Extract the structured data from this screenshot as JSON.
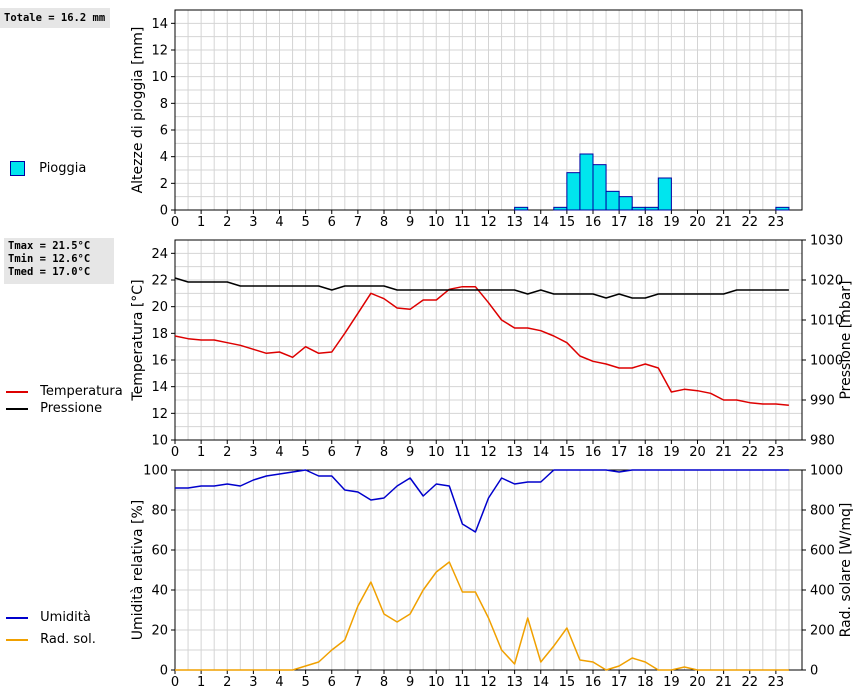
{
  "rain_total": "Totale = 16.2 mm",
  "stats": {
    "tmax": "Tmax = 21.5°C",
    "tmin": "Tmin = 12.6°C",
    "tmed": "Tmed = 17.0°C"
  },
  "legend": {
    "rain": "Pioggia",
    "temperature": "Temperatura",
    "pressure": "Pressione",
    "humidity": "Umidità",
    "radiation": "Rad. sol."
  },
  "colors": {
    "rain_fill": "#00e5ee",
    "rain_edge": "#0000a0",
    "temperature": "#dd0000",
    "pressure": "#000000",
    "humidity": "#0000cc",
    "radiation": "#f0a000",
    "grid": "#d4d4d4"
  },
  "chart_data": [
    {
      "type": "bar",
      "ylabel": "Altezze di pioggia [mm]",
      "xlim": [
        0,
        24
      ],
      "ylim": [
        0,
        15
      ],
      "yticks": [
        0,
        2,
        4,
        6,
        8,
        10,
        12,
        14
      ],
      "xticks": [
        0,
        1,
        2,
        3,
        4,
        5,
        6,
        7,
        8,
        9,
        10,
        11,
        12,
        13,
        14,
        15,
        16,
        17,
        18,
        19,
        20,
        21,
        22,
        23
      ],
      "series": [
        {
          "name": "Pioggia",
          "bin_width": 0.5,
          "x": [
            13.0,
            14.5,
            15.0,
            15.5,
            16.0,
            16.5,
            17.0,
            17.5,
            18.0,
            18.5,
            23.0
          ],
          "values": [
            0.2,
            0.2,
            2.8,
            4.2,
            3.4,
            1.4,
            1.0,
            0.2,
            0.2,
            2.4,
            0.2
          ]
        }
      ]
    },
    {
      "type": "line",
      "ylabel": "Temperatura [°C]",
      "y2label": "Pressione [mbar]",
      "xlim": [
        0,
        24
      ],
      "ylim": [
        10,
        25
      ],
      "yticks": [
        10,
        12,
        14,
        16,
        18,
        20,
        22,
        24
      ],
      "y2lim": [
        980,
        1030
      ],
      "y2ticks": [
        980,
        990,
        1000,
        1010,
        1020,
        1030
      ],
      "xticks": [
        0,
        1,
        2,
        3,
        4,
        5,
        6,
        7,
        8,
        9,
        10,
        11,
        12,
        13,
        14,
        15,
        16,
        17,
        18,
        19,
        20,
        21,
        22,
        23
      ],
      "series": [
        {
          "name": "Temperatura",
          "axis": "left",
          "x": [
            0,
            0.5,
            1,
            1.5,
            2,
            2.5,
            3,
            3.5,
            4,
            4.5,
            5,
            5.5,
            6,
            6.5,
            7,
            7.5,
            8,
            8.5,
            9,
            9.5,
            10,
            10.5,
            11,
            11.5,
            12,
            12.5,
            13,
            13.5,
            14,
            14.5,
            15,
            15.5,
            16,
            16.5,
            17,
            17.5,
            18,
            18.5,
            19,
            19.5,
            20,
            20.5,
            21,
            21.5,
            22,
            22.5,
            23,
            23.5
          ],
          "values": [
            17.8,
            17.6,
            17.5,
            17.5,
            17.3,
            17.1,
            16.8,
            16.5,
            16.6,
            16.2,
            17.0,
            16.5,
            16.6,
            18.0,
            19.5,
            21.0,
            20.6,
            19.9,
            19.8,
            20.5,
            20.5,
            21.3,
            21.5,
            21.5,
            20.3,
            19.0,
            18.4,
            18.4,
            18.2,
            17.8,
            17.3,
            16.3,
            15.9,
            15.7,
            15.4,
            15.4,
            15.7,
            15.4,
            13.6,
            13.8,
            13.7,
            13.5,
            13.0,
            13.0,
            12.8,
            12.7,
            12.7,
            12.6
          ]
        },
        {
          "name": "Pressione",
          "axis": "right",
          "x": [
            0,
            0.5,
            1,
            1.5,
            2,
            2.5,
            3,
            3.5,
            4,
            4.5,
            5,
            5.5,
            6,
            6.5,
            7,
            7.5,
            8,
            8.5,
            9,
            9.5,
            10,
            10.5,
            11,
            11.5,
            12,
            12.5,
            13,
            13.5,
            14,
            14.5,
            15,
            15.5,
            16,
            16.5,
            17,
            17.5,
            18,
            18.5,
            19,
            19.5,
            20,
            20.5,
            21,
            21.5,
            22,
            22.5,
            23,
            23.5
          ],
          "values": [
            1020.5,
            1019.5,
            1019.5,
            1019.5,
            1019.5,
            1018.5,
            1018.5,
            1018.5,
            1018.5,
            1018.5,
            1018.5,
            1018.5,
            1017.5,
            1018.5,
            1018.5,
            1018.5,
            1018.5,
            1017.5,
            1017.5,
            1017.5,
            1017.5,
            1017.5,
            1017.5,
            1017.5,
            1017.5,
            1017.5,
            1017.5,
            1016.5,
            1017.5,
            1016.5,
            1016.5,
            1016.5,
            1016.5,
            1015.5,
            1016.5,
            1015.5,
            1015.5,
            1016.5,
            1016.5,
            1016.5,
            1016.5,
            1016.5,
            1016.5,
            1017.5,
            1017.5,
            1017.5,
            1017.5,
            1017.5
          ]
        }
      ]
    },
    {
      "type": "line",
      "ylabel": "Umidità relativa [%]",
      "y2label": "Rad. solare [W/mq]",
      "xlim": [
        0,
        24
      ],
      "ylim": [
        0,
        100
      ],
      "yticks": [
        0,
        20,
        40,
        60,
        80,
        100
      ],
      "y2lim": [
        0,
        1000
      ],
      "y2ticks": [
        0,
        200,
        400,
        600,
        800,
        1000
      ],
      "xticks": [
        0,
        1,
        2,
        3,
        4,
        5,
        6,
        7,
        8,
        9,
        10,
        11,
        12,
        13,
        14,
        15,
        16,
        17,
        18,
        19,
        20,
        21,
        22,
        23
      ],
      "series": [
        {
          "name": "Umidità",
          "axis": "left",
          "x": [
            0,
            0.5,
            1,
            1.5,
            2,
            2.5,
            3,
            3.5,
            4,
            4.5,
            5,
            5.5,
            6,
            6.5,
            7,
            7.5,
            8,
            8.5,
            9,
            9.5,
            10,
            10.5,
            11,
            11.5,
            12,
            12.5,
            13,
            13.5,
            14,
            14.5,
            15,
            15.5,
            16,
            16.5,
            17,
            17.5,
            18,
            18.5,
            19,
            19.5,
            20,
            20.5,
            21,
            21.5,
            22,
            22.5,
            23,
            23.5
          ],
          "values": [
            91,
            91,
            92,
            92,
            93,
            92,
            95,
            97,
            98,
            99,
            100,
            97,
            97,
            90,
            89,
            85,
            86,
            92,
            96,
            87,
            93,
            92,
            73,
            69,
            86,
            96,
            93,
            94,
            94,
            100,
            100,
            100,
            100,
            100,
            99,
            100,
            100,
            100,
            100,
            100,
            100,
            100,
            100,
            100,
            100,
            100,
            100,
            100
          ]
        },
        {
          "name": "Rad. sol.",
          "axis": "right",
          "x": [
            0,
            0.5,
            1,
            1.5,
            2,
            2.5,
            3,
            3.5,
            4,
            4.5,
            5,
            5.5,
            6,
            6.5,
            7,
            7.5,
            8,
            8.5,
            9,
            9.5,
            10,
            10.5,
            11,
            11.5,
            12,
            12.5,
            13,
            13.5,
            14,
            14.5,
            15,
            15.5,
            16,
            16.5,
            17,
            17.5,
            18,
            18.5,
            19,
            19.5,
            20,
            20.5,
            21,
            21.5,
            22,
            22.5,
            23,
            23.5
          ],
          "values": [
            0,
            0,
            0,
            0,
            0,
            0,
            0,
            0,
            0,
            0,
            20,
            40,
            100,
            150,
            320,
            440,
            280,
            240,
            280,
            400,
            490,
            540,
            390,
            390,
            260,
            100,
            30,
            260,
            40,
            120,
            210,
            50,
            40,
            0,
            20,
            60,
            40,
            0,
            0,
            15,
            0,
            0,
            0,
            0,
            0,
            0,
            0,
            0
          ]
        }
      ]
    }
  ]
}
